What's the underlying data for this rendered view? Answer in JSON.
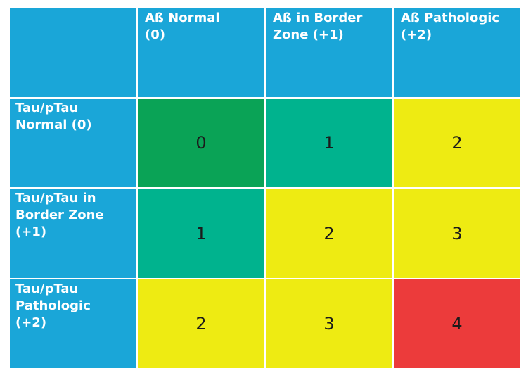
{
  "colors": {
    "header": "#1aa6d8",
    "score_0": "#0aa356",
    "score_1": "#00b38e",
    "score_2": "#eeeb12",
    "score_3": "#eeeb12",
    "score_4": "#ec3b3b"
  },
  "columns": [
    {
      "label": "Aß Normal\n(0)"
    },
    {
      "label": "Aß in Border\nZone (+1)"
    },
    {
      "label": "Aß Pathologic\n(+2)"
    }
  ],
  "rows": [
    {
      "label": "Tau/pTau\nNormal (0)",
      "values": [
        "0",
        "1",
        "2"
      ]
    },
    {
      "label": "Tau/pTau in\nBorder Zone\n(+1)",
      "values": [
        "1",
        "2",
        "3"
      ]
    },
    {
      "label": "Tau/pTau\nPathologic\n(+2)",
      "values": [
        "2",
        "3",
        "4"
      ]
    }
  ]
}
